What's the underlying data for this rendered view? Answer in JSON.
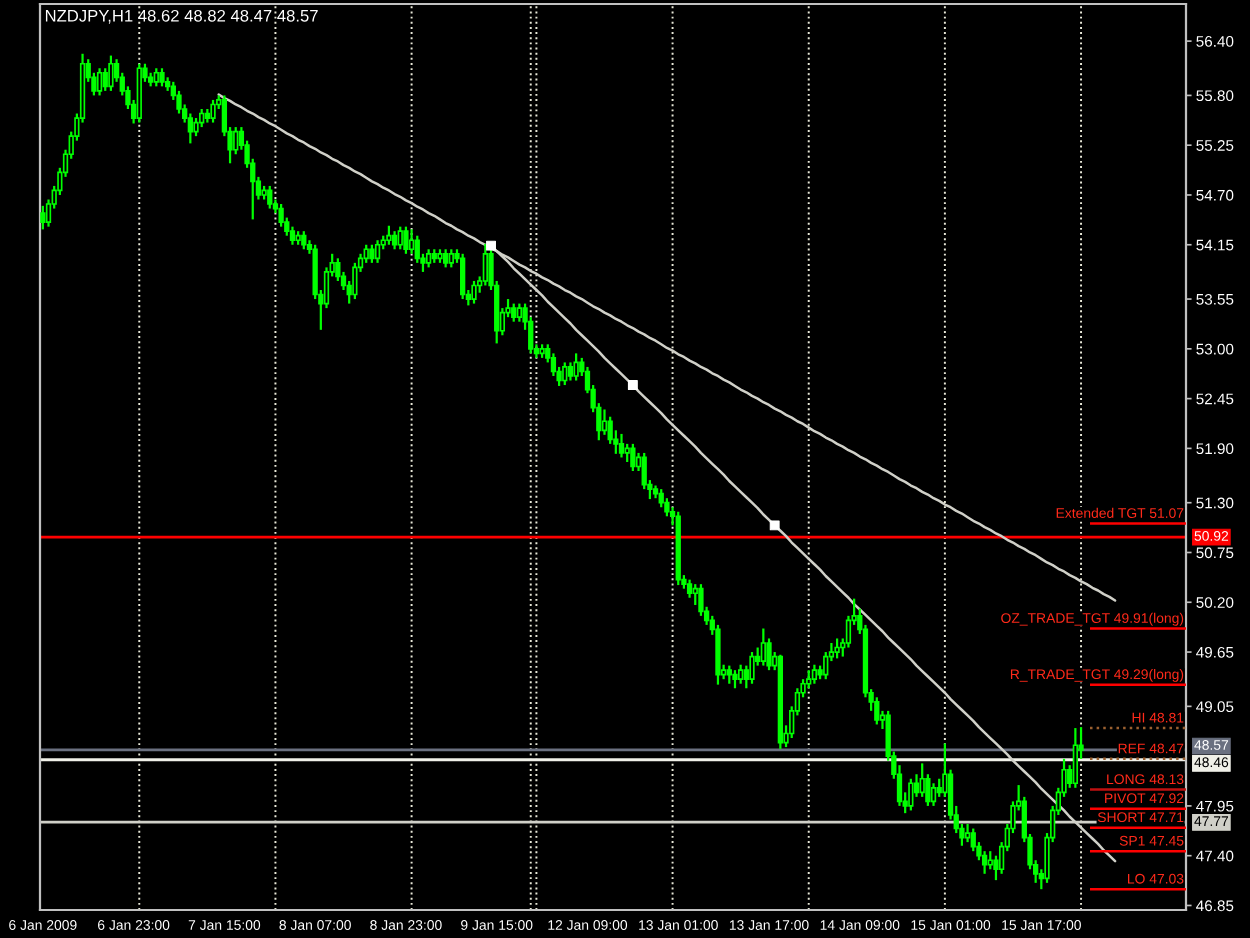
{
  "chart_data": {
    "type": "candlestick",
    "title": "NZDJPY,H1 48.62 48.82 48.47 48.57",
    "categories": [
      "6 Jan 2009",
      null,
      null,
      null,
      null,
      null,
      null,
      null,
      null,
      null,
      null,
      null,
      null,
      null,
      null,
      null,
      "6 Jan 23:00",
      null,
      null,
      null,
      null,
      null,
      null,
      null,
      null,
      null,
      null,
      null,
      null,
      null,
      null,
      null,
      "7 Jan 15:00",
      null,
      null,
      null,
      null,
      null,
      null,
      null,
      null,
      null,
      null,
      null,
      null,
      null,
      null,
      null,
      "8 Jan 07:00",
      null,
      null,
      null,
      null,
      null,
      null,
      null,
      null,
      null,
      null,
      null,
      null,
      null,
      null,
      null,
      "8 Jan 23:00",
      null,
      null,
      null,
      null,
      null,
      null,
      null,
      null,
      null,
      null,
      null,
      null,
      null,
      null,
      null,
      "9 Jan 15:00",
      null,
      null,
      null,
      null,
      null,
      null,
      null,
      null,
      null,
      null,
      null,
      null,
      null,
      null,
      null,
      "12 Jan 09:00",
      null,
      null,
      null,
      null,
      null,
      null,
      null,
      null,
      null,
      null,
      null,
      null,
      null,
      null,
      null,
      "13 Jan 01:00",
      null,
      null,
      null,
      null,
      null,
      null,
      null,
      null,
      null,
      null,
      null,
      null,
      null,
      null,
      null,
      "13 Jan 17:00",
      null,
      null,
      null,
      null,
      null,
      null,
      null,
      null,
      null,
      null,
      null,
      null,
      null,
      null,
      null,
      "14 Jan 09:00",
      null,
      null,
      null,
      null,
      null,
      null,
      null,
      null,
      null,
      null,
      null,
      null,
      null,
      null,
      null,
      "15 Jan 01:00",
      null,
      null,
      null,
      null,
      null,
      null,
      null,
      null,
      null,
      null,
      null,
      null,
      null,
      null,
      null,
      "15 Jan 17:00",
      null,
      null,
      null,
      null,
      null,
      null,
      null,
      null,
      null,
      null,
      null,
      null,
      null,
      null,
      null,
      null,
      null,
      null,
      null,
      null,
      null,
      null,
      null,
      null,
      null
    ],
    "series": [
      {
        "type": "candlestick",
        "color": "#00ff00",
        "ohlc": [
          [
            54.5,
            54.58,
            54.32,
            54.4
          ],
          [
            54.4,
            54.65,
            54.35,
            54.6
          ],
          [
            54.6,
            54.8,
            54.55,
            54.75
          ],
          [
            54.75,
            55.0,
            54.7,
            54.95
          ],
          [
            54.95,
            55.2,
            54.9,
            55.15
          ],
          [
            55.15,
            55.4,
            55.1,
            55.35
          ],
          [
            55.35,
            55.6,
            55.3,
            55.55
          ],
          [
            55.55,
            56.26,
            55.5,
            56.15
          ],
          [
            56.15,
            56.2,
            55.95,
            56.0
          ],
          [
            56.0,
            56.05,
            55.8,
            55.85
          ],
          [
            55.85,
            56.1,
            55.8,
            56.05
          ],
          [
            56.05,
            56.1,
            55.85,
            55.9
          ],
          [
            55.9,
            56.24,
            55.85,
            56.15
          ],
          [
            56.15,
            56.2,
            55.95,
            56.0
          ],
          [
            56.0,
            56.05,
            55.8,
            55.85
          ],
          [
            55.85,
            55.9,
            55.65,
            55.7
          ],
          [
            55.7,
            55.75,
            55.49,
            55.55
          ],
          [
            55.55,
            56.15,
            55.5,
            56.1
          ],
          [
            56.1,
            56.15,
            55.95,
            56.0
          ],
          [
            56.0,
            56.05,
            55.9,
            55.95
          ],
          [
            55.95,
            56.1,
            55.9,
            56.05
          ],
          [
            56.05,
            56.1,
            55.9,
            55.95
          ],
          [
            55.95,
            56.0,
            55.85,
            55.9
          ],
          [
            55.9,
            55.95,
            55.75,
            55.8
          ],
          [
            55.8,
            55.85,
            55.6,
            55.65
          ],
          [
            55.65,
            55.7,
            55.5,
            55.55
          ],
          [
            55.55,
            55.6,
            55.27,
            55.4
          ],
          [
            55.4,
            55.55,
            55.35,
            55.5
          ],
          [
            55.5,
            55.65,
            55.45,
            55.6
          ],
          [
            55.6,
            55.65,
            55.5,
            55.55
          ],
          [
            55.55,
            55.75,
            55.5,
            55.7
          ],
          [
            55.7,
            55.8,
            55.65,
            55.75
          ],
          [
            55.75,
            55.8,
            55.35,
            55.4
          ],
          [
            55.4,
            55.45,
            55.05,
            55.2
          ],
          [
            55.2,
            55.45,
            55.15,
            55.4
          ],
          [
            55.4,
            55.45,
            55.2,
            55.25
          ],
          [
            55.25,
            55.3,
            55.0,
            55.05
          ],
          [
            55.05,
            55.1,
            54.43,
            54.85
          ],
          [
            54.85,
            54.9,
            54.65,
            54.7
          ],
          [
            54.7,
            54.8,
            54.65,
            54.75
          ],
          [
            54.75,
            54.8,
            54.55,
            54.6
          ],
          [
            54.6,
            54.65,
            54.5,
            54.55
          ],
          [
            54.55,
            54.6,
            54.35,
            54.4
          ],
          [
            54.4,
            54.45,
            54.25,
            54.3
          ],
          [
            54.3,
            54.35,
            54.15,
            54.2
          ],
          [
            54.2,
            54.3,
            54.15,
            54.25
          ],
          [
            54.25,
            54.3,
            54.1,
            54.15
          ],
          [
            54.15,
            54.2,
            54.05,
            54.1
          ],
          [
            54.1,
            54.15,
            53.55,
            53.6
          ],
          [
            53.6,
            53.65,
            53.21,
            53.5
          ],
          [
            53.5,
            53.9,
            53.45,
            53.85
          ],
          [
            53.85,
            54.05,
            53.8,
            53.95
          ],
          [
            53.95,
            54.0,
            53.75,
            53.8
          ],
          [
            53.8,
            53.85,
            53.65,
            53.7
          ],
          [
            53.7,
            53.75,
            53.5,
            53.6
          ],
          [
            53.6,
            53.95,
            53.55,
            53.9
          ],
          [
            53.9,
            54.05,
            53.85,
            54.0
          ],
          [
            54.0,
            54.15,
            53.95,
            54.1
          ],
          [
            54.1,
            54.15,
            53.95,
            54.0
          ],
          [
            54.0,
            54.2,
            53.95,
            54.15
          ],
          [
            54.15,
            54.25,
            54.1,
            54.2
          ],
          [
            54.2,
            54.36,
            54.15,
            54.25
          ],
          [
            54.25,
            54.3,
            54.1,
            54.15
          ],
          [
            54.15,
            54.35,
            54.1,
            54.3
          ],
          [
            54.3,
            54.35,
            54.05,
            54.1
          ],
          [
            54.1,
            54.32,
            54.05,
            54.2
          ],
          [
            54.2,
            54.25,
            53.95,
            54.0
          ],
          [
            54.0,
            54.05,
            53.85,
            53.95
          ],
          [
            53.95,
            54.1,
            53.9,
            54.05
          ],
          [
            54.05,
            54.1,
            53.95,
            54.0
          ],
          [
            54.0,
            54.1,
            53.95,
            54.05
          ],
          [
            54.05,
            54.1,
            53.9,
            53.95
          ],
          [
            53.95,
            54.1,
            53.9,
            54.05
          ],
          [
            54.05,
            54.1,
            53.95,
            54.0
          ],
          [
            54.0,
            54.05,
            53.55,
            53.6
          ],
          [
            53.6,
            53.65,
            53.48,
            53.55
          ],
          [
            53.55,
            53.75,
            53.5,
            53.7
          ],
          [
            53.7,
            53.8,
            53.62,
            53.75
          ],
          [
            53.75,
            54.16,
            53.7,
            54.05
          ],
          [
            54.05,
            54.1,
            53.65,
            53.7
          ],
          [
            53.7,
            53.75,
            53.06,
            53.2
          ],
          [
            53.2,
            53.45,
            53.15,
            53.4
          ],
          [
            53.4,
            53.55,
            53.35,
            53.45
          ],
          [
            53.45,
            53.5,
            53.3,
            53.35
          ],
          [
            53.35,
            53.5,
            53.3,
            53.45
          ],
          [
            53.45,
            53.5,
            53.21,
            53.3
          ],
          [
            53.3,
            53.35,
            52.95,
            53.0
          ],
          [
            53.0,
            53.05,
            52.9,
            52.95
          ],
          [
            52.95,
            53.05,
            52.9,
            53.0
          ],
          [
            53.0,
            53.05,
            52.85,
            52.9
          ],
          [
            52.9,
            52.95,
            52.7,
            52.75
          ],
          [
            52.75,
            52.8,
            52.59,
            52.65
          ],
          [
            52.65,
            52.85,
            52.6,
            52.8
          ],
          [
            52.8,
            52.85,
            52.65,
            52.7
          ],
          [
            52.7,
            52.95,
            52.65,
            52.85
          ],
          [
            52.85,
            52.9,
            52.7,
            52.75
          ],
          [
            52.75,
            52.8,
            52.51,
            52.55
          ],
          [
            52.55,
            52.6,
            52.3,
            52.35
          ],
          [
            52.35,
            52.4,
            51.99,
            52.1
          ],
          [
            52.1,
            52.33,
            52.05,
            52.2
          ],
          [
            52.2,
            52.25,
            51.95,
            52.0
          ],
          [
            52.0,
            52.1,
            51.84,
            51.95
          ],
          [
            51.95,
            52.06,
            51.8,
            51.85
          ],
          [
            51.85,
            51.95,
            51.75,
            51.9
          ],
          [
            51.9,
            51.95,
            51.65,
            51.7
          ],
          [
            51.7,
            51.85,
            51.65,
            51.8
          ],
          [
            51.8,
            51.85,
            51.45,
            51.5
          ],
          [
            51.5,
            51.55,
            51.34,
            51.45
          ],
          [
            51.45,
            51.49,
            51.35,
            51.4
          ],
          [
            51.4,
            51.45,
            51.25,
            51.3
          ],
          [
            51.3,
            51.35,
            51.15,
            51.2
          ],
          [
            51.2,
            51.25,
            51.05,
            51.15
          ],
          [
            51.15,
            51.2,
            50.39,
            50.45
          ],
          [
            50.45,
            50.5,
            50.35,
            50.4
          ],
          [
            50.4,
            50.45,
            50.25,
            50.3
          ],
          [
            50.3,
            50.4,
            50.17,
            50.35
          ],
          [
            50.35,
            50.4,
            50.05,
            50.1
          ],
          [
            50.1,
            50.15,
            49.95,
            50.0
          ],
          [
            50.0,
            50.05,
            49.84,
            49.9
          ],
          [
            49.9,
            49.95,
            49.29,
            49.4
          ],
          [
            49.4,
            49.51,
            49.35,
            49.45
          ],
          [
            49.45,
            49.5,
            49.3,
            49.4
          ],
          [
            49.4,
            49.45,
            49.25,
            49.35
          ],
          [
            49.35,
            49.51,
            49.3,
            49.45
          ],
          [
            49.45,
            49.5,
            49.25,
            49.35
          ],
          [
            49.35,
            49.65,
            49.3,
            49.6
          ],
          [
            49.6,
            49.7,
            49.5,
            49.55
          ],
          [
            49.55,
            49.91,
            49.5,
            49.75
          ],
          [
            49.75,
            49.8,
            49.45,
            49.5
          ],
          [
            49.5,
            49.65,
            49.45,
            49.6
          ],
          [
            49.6,
            49.62,
            48.58,
            48.65
          ],
          [
            48.65,
            48.84,
            48.6,
            48.75
          ],
          [
            48.75,
            49.05,
            48.7,
            49.0
          ],
          [
            49.0,
            49.25,
            48.95,
            49.2
          ],
          [
            49.2,
            49.35,
            49.15,
            49.3
          ],
          [
            49.3,
            49.45,
            49.25,
            49.35
          ],
          [
            49.35,
            49.51,
            49.3,
            49.45
          ],
          [
            49.45,
            49.5,
            49.35,
            49.4
          ],
          [
            49.4,
            49.65,
            49.35,
            49.6
          ],
          [
            49.6,
            49.75,
            49.55,
            49.65
          ],
          [
            49.65,
            49.8,
            49.58,
            49.7
          ],
          [
            49.7,
            49.8,
            49.6,
            49.75
          ],
          [
            49.75,
            50.05,
            49.7,
            50.0
          ],
          [
            50.0,
            50.24,
            49.95,
            50.05
          ],
          [
            50.05,
            50.13,
            49.85,
            49.9
          ],
          [
            49.9,
            49.95,
            49.15,
            49.2
          ],
          [
            49.2,
            49.24,
            49.0,
            49.1
          ],
          [
            49.1,
            49.15,
            48.85,
            48.9
          ],
          [
            48.9,
            49.0,
            48.8,
            48.95
          ],
          [
            48.95,
            49.0,
            48.45,
            48.5
          ],
          [
            48.5,
            48.55,
            48.25,
            48.3
          ],
          [
            48.3,
            48.4,
            47.95,
            48.0
          ],
          [
            48.0,
            48.1,
            47.87,
            47.95
          ],
          [
            47.95,
            48.25,
            47.9,
            48.2
          ],
          [
            48.2,
            48.3,
            48.05,
            48.1
          ],
          [
            48.1,
            48.42,
            48.05,
            48.25
          ],
          [
            48.25,
            48.3,
            47.95,
            48.0
          ],
          [
            48.0,
            48.2,
            47.95,
            48.15
          ],
          [
            48.15,
            48.25,
            48.05,
            48.1
          ],
          [
            48.1,
            48.64,
            48.05,
            48.3
          ],
          [
            48.3,
            48.35,
            47.8,
            47.85
          ],
          [
            47.85,
            47.95,
            47.65,
            47.7
          ],
          [
            47.7,
            47.75,
            47.51,
            47.6
          ],
          [
            47.6,
            47.75,
            47.55,
            47.65
          ],
          [
            47.65,
            47.7,
            47.45,
            47.5
          ],
          [
            47.5,
            47.55,
            47.35,
            47.4
          ],
          [
            47.4,
            47.45,
            47.2,
            47.3
          ],
          [
            47.3,
            47.45,
            47.25,
            47.35
          ],
          [
            47.35,
            47.4,
            47.13,
            47.25
          ],
          [
            47.25,
            47.55,
            47.2,
            47.5
          ],
          [
            47.5,
            47.75,
            47.45,
            47.7
          ],
          [
            47.7,
            48.0,
            47.65,
            47.95
          ],
          [
            47.95,
            48.18,
            47.9,
            48.0
          ],
          [
            48.0,
            48.05,
            47.55,
            47.6
          ],
          [
            47.6,
            47.64,
            47.25,
            47.3
          ],
          [
            47.3,
            47.35,
            47.1,
            47.2
          ],
          [
            47.2,
            47.25,
            47.03,
            47.15
          ],
          [
            47.15,
            47.65,
            47.1,
            47.6
          ],
          [
            47.6,
            47.95,
            47.55,
            47.9
          ],
          [
            47.9,
            48.15,
            47.85,
            48.1
          ],
          [
            48.1,
            48.47,
            48.05,
            48.35
          ],
          [
            48.35,
            48.4,
            48.15,
            48.2
          ],
          [
            48.2,
            48.81,
            48.15,
            48.62
          ],
          [
            48.62,
            48.82,
            48.47,
            48.57
          ],
          null,
          null,
          null,
          null,
          null,
          null,
          null,
          null,
          null,
          null,
          null,
          null,
          null,
          null,
          null,
          null,
          null,
          null
        ]
      },
      {
        "type": "line",
        "color": "#d0d0c8",
        "line_style": "solid",
        "values": [
          null,
          null,
          null,
          null,
          null,
          null,
          null,
          null,
          null,
          null,
          null,
          null,
          null,
          null,
          null,
          null,
          null,
          null,
          null,
          null,
          null,
          null,
          null,
          null,
          null,
          null,
          null,
          null,
          null,
          null,
          null,
          55.81,
          55.77,
          55.74,
          55.7,
          55.67,
          55.63,
          55.6,
          55.56,
          55.53,
          55.49,
          55.46,
          55.42,
          55.38,
          55.35,
          55.31,
          55.28,
          55.24,
          55.21,
          55.17,
          55.14,
          55.1,
          55.07,
          55.03,
          55.0,
          54.96,
          54.93,
          54.89,
          54.85,
          54.82,
          54.78,
          54.75,
          54.71,
          54.68,
          54.64,
          54.61,
          54.57,
          54.54,
          54.5,
          54.47,
          54.43,
          54.39,
          54.36,
          54.32,
          54.29,
          54.25,
          54.22,
          54.18,
          54.15,
          54.11,
          54.08,
          54.04,
          54.01,
          53.97,
          53.93,
          53.9,
          53.86,
          53.83,
          53.79,
          53.76,
          53.72,
          53.69,
          53.65,
          53.62,
          53.58,
          53.55,
          53.51,
          53.47,
          53.44,
          53.4,
          53.37,
          53.33,
          53.3,
          53.26,
          53.23,
          53.19,
          53.16,
          53.12,
          53.09,
          53.05,
          53.01,
          52.98,
          52.94,
          52.91,
          52.87,
          52.84,
          52.8,
          52.77,
          52.73,
          52.7,
          52.66,
          52.63,
          52.59,
          52.55,
          52.52,
          52.48,
          52.45,
          52.41,
          52.38,
          52.34,
          52.31,
          52.27,
          52.24,
          52.2,
          52.17,
          52.13,
          52.09,
          52.06,
          52.02,
          51.99,
          51.95,
          51.92,
          51.88,
          51.85,
          51.81,
          51.78,
          51.74,
          51.71,
          51.67,
          51.64,
          51.6,
          51.56,
          51.53,
          51.49,
          51.46,
          51.42,
          51.39,
          51.35,
          51.32,
          51.28,
          51.25,
          51.21,
          51.18,
          51.14,
          51.1,
          51.07,
          51.03,
          51.0,
          50.96,
          50.93,
          50.89,
          50.86,
          50.82,
          50.79,
          50.75,
          50.72,
          50.68,
          50.64,
          50.61,
          50.57,
          50.54,
          50.5,
          50.47,
          50.43,
          50.4,
          50.36,
          50.33,
          50.29,
          50.26,
          50.22,
          null,
          null,
          null,
          null,
          null,
          null,
          null,
          null,
          null,
          null,
          null,
          null
        ]
      },
      {
        "type": "line",
        "color": "#d0d0c8",
        "line_style": "solid",
        "values": [
          null,
          null,
          null,
          null,
          null,
          null,
          null,
          null,
          null,
          null,
          null,
          null,
          null,
          null,
          null,
          null,
          null,
          null,
          null,
          null,
          null,
          null,
          null,
          null,
          null,
          null,
          null,
          null,
          null,
          null,
          null,
          null,
          null,
          null,
          null,
          null,
          null,
          null,
          null,
          null,
          null,
          null,
          null,
          null,
          null,
          null,
          null,
          null,
          null,
          null,
          null,
          null,
          null,
          null,
          null,
          null,
          null,
          null,
          null,
          null,
          null,
          null,
          null,
          null,
          null,
          null,
          null,
          null,
          null,
          null,
          null,
          null,
          null,
          null,
          null,
          null,
          null,
          null,
          null,
          54.14,
          54.08,
          54.02,
          53.96,
          53.89,
          53.83,
          53.77,
          53.71,
          53.65,
          53.59,
          53.52,
          53.46,
          53.4,
          53.34,
          53.28,
          53.21,
          53.15,
          53.09,
          53.03,
          52.97,
          52.9,
          52.84,
          52.78,
          52.72,
          52.66,
          52.6,
          52.53,
          52.47,
          52.41,
          52.35,
          52.29,
          52.22,
          52.16,
          52.1,
          52.04,
          51.98,
          51.92,
          51.85,
          51.79,
          51.73,
          51.67,
          51.61,
          51.54,
          51.48,
          51.42,
          51.36,
          51.3,
          51.24,
          51.17,
          51.11,
          51.05,
          50.99,
          50.93,
          50.86,
          50.8,
          50.74,
          50.68,
          50.62,
          50.56,
          50.49,
          50.43,
          50.37,
          50.31,
          50.25,
          50.18,
          50.12,
          50.06,
          50.0,
          49.94,
          49.88,
          49.81,
          49.75,
          49.69,
          49.63,
          49.57,
          49.5,
          49.44,
          49.38,
          49.32,
          49.26,
          49.2,
          49.13,
          49.07,
          49.01,
          48.95,
          48.89,
          48.82,
          48.76,
          48.7,
          48.64,
          48.58,
          48.52,
          48.45,
          48.39,
          48.33,
          48.27,
          48.21,
          48.14,
          48.08,
          48.02,
          47.96,
          47.9,
          47.83,
          47.77,
          47.71,
          47.65,
          47.59,
          47.53,
          47.46,
          47.4,
          47.34,
          null,
          null,
          null,
          null,
          null,
          null,
          null,
          null,
          null,
          null,
          null,
          null
        ]
      },
      {
        "type": "scatter",
        "marker": "square",
        "color": "#ffffff",
        "values": [
          null,
          null,
          null,
          null,
          null,
          null,
          null,
          null,
          null,
          null,
          null,
          null,
          null,
          null,
          null,
          null,
          null,
          null,
          null,
          null,
          null,
          null,
          null,
          null,
          null,
          null,
          null,
          null,
          null,
          null,
          null,
          null,
          null,
          null,
          null,
          null,
          null,
          null,
          null,
          null,
          null,
          null,
          null,
          null,
          null,
          null,
          null,
          null,
          null,
          null,
          null,
          null,
          null,
          null,
          null,
          null,
          null,
          null,
          null,
          null,
          null,
          null,
          null,
          null,
          null,
          null,
          null,
          null,
          null,
          null,
          null,
          null,
          null,
          null,
          null,
          null,
          null,
          null,
          null,
          54.14,
          null,
          null,
          null,
          null,
          null,
          null,
          null,
          null,
          null,
          null,
          null,
          null,
          null,
          null,
          null,
          null,
          null,
          null,
          null,
          null,
          null,
          null,
          null,
          null,
          52.6,
          null,
          null,
          null,
          null,
          null,
          null,
          null,
          null,
          null,
          null,
          null,
          null,
          null,
          null,
          null,
          null,
          null,
          null,
          null,
          null,
          null,
          null,
          null,
          null,
          51.05,
          null,
          null,
          null,
          null,
          null,
          null,
          null,
          null,
          null,
          null,
          null,
          null,
          null,
          null,
          null,
          null,
          null,
          null,
          null,
          null,
          null,
          null,
          null,
          null,
          null,
          null,
          null,
          null,
          null,
          null,
          null,
          null,
          null,
          null,
          null,
          null,
          null,
          null,
          null,
          null,
          null,
          null,
          null,
          null,
          null,
          null,
          null,
          null,
          null,
          null,
          null,
          null,
          null,
          null,
          null,
          null,
          null,
          null,
          null,
          null,
          null,
          null,
          null,
          null,
          null,
          null,
          null,
          null,
          null,
          null,
          null,
          null
        ]
      }
    ],
    "ylim": [
      46.8,
      56.81
    ],
    "yticks": [
      {
        "value": 56.4,
        "label": "56.40"
      },
      {
        "value": 55.8,
        "label": "55.80"
      },
      55.25,
      {
        "value": 54.7,
        "label": "54.70"
      },
      54.15,
      53.55,
      {
        "value": 53.0,
        "label": "53.00"
      },
      52.45,
      {
        "value": 51.9,
        "label": "51.90"
      },
      {
        "value": 51.3,
        "label": "51.30"
      },
      50.75,
      {
        "value": 50.2,
        "label": "50.20"
      },
      49.65,
      49.05,
      47.95,
      {
        "value": 47.4,
        "label": "47.40"
      },
      46.85
    ],
    "ref_lines": [
      {
        "axis": "y",
        "value": 50.92,
        "label": "50.92",
        "color": "#ff0000",
        "line_style": "solid"
      },
      {
        "axis": "y",
        "value": 48.57,
        "label": "48.57",
        "color": "#6a7080",
        "line_style": "solid"
      },
      {
        "axis": "y",
        "value": 48.46,
        "label": "48.46",
        "color": "#f0f0e8",
        "line_style": "solid"
      },
      {
        "axis": "y",
        "value": 47.77,
        "label": "47.77",
        "color": "#d0d0c8",
        "line_style": "solid"
      },
      {
        "axis": "y",
        "value": 51.07,
        "label": "Extended TGT 51.07",
        "color": "#ff0000",
        "line_style": "solid"
      },
      {
        "axis": "y",
        "value": 49.91,
        "label": "OZ_TRADE_TGT 49.91(long)",
        "color": "#ff0000",
        "line_style": "solid"
      },
      {
        "axis": "y",
        "value": 49.29,
        "label": "R_TRADE_TGT 49.29(long)",
        "color": "#ff0000",
        "line_style": "solid"
      },
      {
        "axis": "y",
        "value": 48.81,
        "label": "HI 48.81",
        "color": "#9a6030",
        "line_style": "dotted"
      },
      {
        "axis": "y",
        "value": 48.47,
        "label": "REF 48.47",
        "color": "#9a6030",
        "line_style": "dotted"
      },
      {
        "axis": "y",
        "value": 48.13,
        "label": "LONG 48.13",
        "color": "#c01010",
        "line_style": "solid"
      },
      {
        "axis": "y",
        "value": 47.92,
        "label": "PIVOT 47.92",
        "color": "#ff0000",
        "line_style": "solid"
      },
      {
        "axis": "y",
        "value": 47.71,
        "label": "SHORT 47.71",
        "color": "#ff0000",
        "line_style": "solid"
      },
      {
        "axis": "y",
        "value": 47.45,
        "label": "SP1 47.45",
        "color": "#ff0000",
        "line_style": "solid"
      },
      {
        "axis": "y",
        "value": 47.03,
        "label": "LO 47.03",
        "color": "#ff0000",
        "line_style": "solid"
      }
    ]
  }
}
